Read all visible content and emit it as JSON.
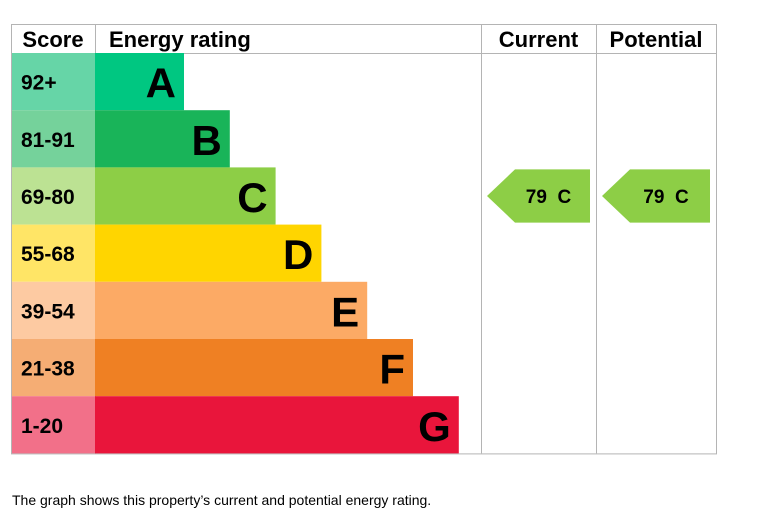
{
  "chart_data": {
    "type": "bar",
    "headers": {
      "score": "Score",
      "rating": "Energy rating",
      "current": "Current",
      "potential": "Potential"
    },
    "bands": [
      {
        "score": "92+",
        "letter": "A",
        "color": "#00c781",
        "score_color": "#66d5a7"
      },
      {
        "score": "81-91",
        "letter": "B",
        "color": "#19b459",
        "score_color": "#75d29b"
      },
      {
        "score": "69-80",
        "letter": "C",
        "color": "#8dce46",
        "score_color": "#bce293"
      },
      {
        "score": "55-68",
        "letter": "D",
        "color": "#ffd500",
        "score_color": "#ffe566"
      },
      {
        "score": "39-54",
        "letter": "E",
        "color": "#fcaa65",
        "score_color": "#fdcaa2"
      },
      {
        "score": "21-38",
        "letter": "F",
        "color": "#ef8023",
        "score_color": "#f5ad74"
      },
      {
        "score": "1-20",
        "letter": "G",
        "color": "#e9153b",
        "score_color": "#f27089"
      }
    ],
    "current": {
      "value": 79,
      "band": "C",
      "label": "79  C",
      "color": "#8dce46"
    },
    "potential": {
      "value": 79,
      "band": "C",
      "label": "79  C",
      "color": "#8dce46"
    }
  },
  "caption": "The graph shows this property’s current and potential energy rating."
}
